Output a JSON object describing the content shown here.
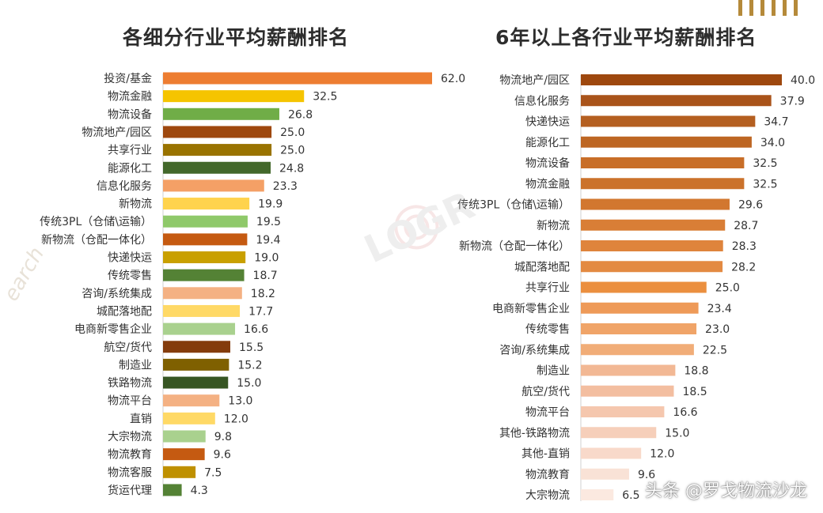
{
  "chart_data": [
    {
      "type": "bar",
      "orientation": "horizontal",
      "title": "各细分行业平均薪酬排名",
      "categories": [
        "投资/基金",
        "物流金融",
        "物流设备",
        "物流地产/园区",
        "共享行业",
        "能源化工",
        "信息化服务",
        "新物流",
        "传统3PL（仓储\\运输）",
        "新物流（仓配一体化）",
        "快递快运",
        "传统零售",
        "咨询/系统集成",
        "城配落地配",
        "电商新零售企业",
        "航空/货代",
        "制造业",
        "铁路物流",
        "物流平台",
        "直销",
        "大宗物流",
        "物流教育",
        "物流客服",
        "货运代理"
      ],
      "values": [
        62.0,
        32.5,
        26.8,
        25.0,
        25.0,
        24.8,
        23.3,
        19.9,
        19.5,
        19.4,
        19.0,
        18.7,
        18.2,
        17.7,
        16.6,
        15.5,
        15.2,
        15.0,
        13.0,
        12.0,
        9.8,
        9.6,
        7.5,
        4.3
      ],
      "value_labels": [
        "62.0",
        "32.5",
        "26.8",
        "25.0",
        "25.0",
        "24.8",
        "23.3",
        "19.9",
        "19.5",
        "19.4",
        "19.0",
        "18.7",
        "18.2",
        "17.7",
        "16.6",
        "15.5",
        "15.2",
        "15.0",
        "13.0",
        "12.0",
        "9.8",
        "9.6",
        "7.5",
        "4.3"
      ],
      "colors": [
        "#ed7d31",
        "#f5c400",
        "#70ad47",
        "#9e480e",
        "#997300",
        "#43682b",
        "#f4a066",
        "#ffd34d",
        "#8fc96a",
        "#c55a11",
        "#c9a000",
        "#548235",
        "#f4b183",
        "#ffd966",
        "#a9d18e",
        "#843c0c",
        "#7f6000",
        "#375623",
        "#f4b183",
        "#ffd966",
        "#a9d18e",
        "#c55a11",
        "#bf9000",
        "#548235"
      ],
      "xlim": [
        0,
        62
      ],
      "grid": false,
      "legend": "none"
    },
    {
      "type": "bar",
      "orientation": "horizontal",
      "title": "6年以上各行业平均薪酬排名",
      "categories": [
        "物流地产/园区",
        "信息化服务",
        "快递快运",
        "能源化工",
        "物流设备",
        "物流金融",
        "传统3PL（仓储\\运输）",
        "新物流",
        "新物流（仓配一体化）",
        "城配落地配",
        "共享行业",
        "电商新零售企业",
        "传统零售",
        "咨询/系统集成",
        "制造业",
        "航空/货代",
        "物流平台",
        "其他-铁路物流",
        "其他-直销",
        "物流教育",
        "大宗物流"
      ],
      "values": [
        40.0,
        37.9,
        34.7,
        34.0,
        32.5,
        32.5,
        29.6,
        28.7,
        28.3,
        28.2,
        25.0,
        23.4,
        23.0,
        22.5,
        18.8,
        18.5,
        16.6,
        15.0,
        12.0,
        9.6,
        6.5
      ],
      "value_labels": [
        "40.0",
        "37.9",
        "34.7",
        "34.0",
        "32.5",
        "32.5",
        "29.6",
        "28.7",
        "28.3",
        "28.2",
        "25.0",
        "23.4",
        "23.0",
        "22.5",
        "18.8",
        "18.5",
        "16.6",
        "15.0",
        "12.0",
        "9.6",
        "6.5"
      ],
      "colors": [
        "#9e480e",
        "#a9531a",
        "#b45f20",
        "#bd6623",
        "#c86e28",
        "#cb722b",
        "#d2772f",
        "#d97e36",
        "#df843c",
        "#e38a42",
        "#eb8f3f",
        "#ee9a58",
        "#f0a468",
        "#f1ad78",
        "#f2b894",
        "#f3bea0",
        "#f5c7ae",
        "#f6cfba",
        "#f8d9ca",
        "#f9e2d6",
        "#fbe9e0"
      ],
      "xlim": [
        0,
        40
      ],
      "grid": false,
      "legend": "none"
    }
  ],
  "credit": "头条 @罗戈物流沙龙",
  "watermark_text": "LOGR",
  "watermark_side": "earch"
}
